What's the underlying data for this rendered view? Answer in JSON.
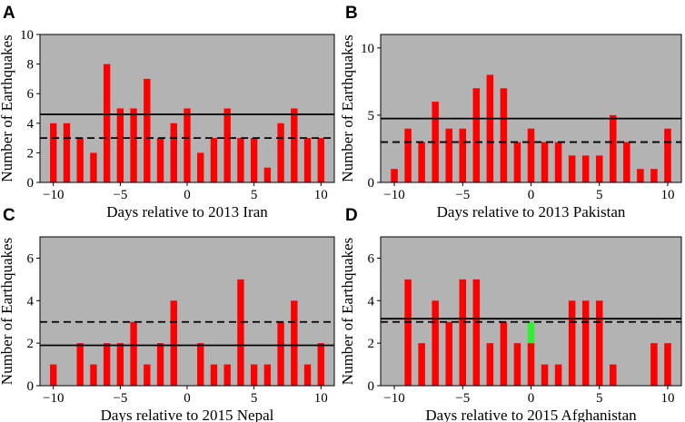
{
  "colors": {
    "plot_background": "#b3b3b3",
    "bar": "#ff0000",
    "highlight_bar": "#33ee33",
    "reference_line": "#000000"
  },
  "chart_data": [
    {
      "type": "bar",
      "panel": "A",
      "xlabel": "Days relative to 2013 Iran",
      "ylabel": "Number of Earthquakes",
      "x": [
        -10,
        -9,
        -8,
        -7,
        -6,
        -5,
        -4,
        -3,
        -2,
        -1,
        0,
        1,
        2,
        3,
        4,
        5,
        6,
        7,
        8,
        9,
        10
      ],
      "values": [
        4,
        4,
        3,
        2,
        8,
        5,
        5,
        7,
        3,
        4,
        5,
        2,
        3,
        5,
        3,
        3,
        1,
        4,
        5,
        3,
        3
      ],
      "solid_line": 4.6,
      "dashed_line": 3.0,
      "xlim": [
        -11,
        11
      ],
      "ylim": [
        0,
        10
      ],
      "xticks": [
        -10,
        -5,
        0,
        5,
        10
      ],
      "yticks": [
        0,
        2,
        4,
        6,
        8,
        10
      ]
    },
    {
      "type": "bar",
      "panel": "B",
      "xlabel": "Days relative to 2013 Pakistan",
      "ylabel": "Number of Earthquakes",
      "x": [
        -10,
        -9,
        -8,
        -7,
        -6,
        -5,
        -4,
        -3,
        -2,
        -1,
        0,
        1,
        2,
        3,
        4,
        5,
        6,
        7,
        8,
        9,
        10
      ],
      "values": [
        1,
        4,
        3,
        6,
        4,
        4,
        7,
        8,
        7,
        3,
        4,
        3,
        3,
        2,
        2,
        2,
        5,
        3,
        1,
        1,
        4
      ],
      "solid_line": 4.75,
      "dashed_line": 3.0,
      "xlim": [
        -11,
        11
      ],
      "ylim": [
        0,
        11
      ],
      "xticks": [
        -10,
        -5,
        0,
        5,
        10
      ],
      "yticks": [
        0,
        5,
        10
      ]
    },
    {
      "type": "bar",
      "panel": "C",
      "xlabel": "Days relative to 2015 Nepal",
      "ylabel": "Number of Earthquakes",
      "x": [
        -10,
        -9,
        -8,
        -7,
        -6,
        -5,
        -4,
        -3,
        -2,
        -1,
        0,
        1,
        2,
        3,
        4,
        5,
        6,
        7,
        8,
        9,
        10
      ],
      "values": [
        1,
        0,
        2,
        1,
        2,
        2,
        3,
        1,
        2,
        4,
        0,
        2,
        1,
        1,
        5,
        1,
        1,
        3,
        4,
        1,
        2
      ],
      "solid_line": 1.9,
      "dashed_line": 3.0,
      "xlim": [
        -11,
        11
      ],
      "ylim": [
        0,
        7
      ],
      "xticks": [
        -10,
        -5,
        0,
        5,
        10
      ],
      "yticks": [
        0,
        2,
        4,
        6
      ]
    },
    {
      "type": "bar",
      "panel": "D",
      "xlabel": "Days relative to 2015 Afghanistan",
      "ylabel": "Number of Earthquakes",
      "x": [
        -10,
        -9,
        -8,
        -7,
        -6,
        -5,
        -4,
        -3,
        -2,
        -1,
        0,
        1,
        2,
        3,
        4,
        5,
        6,
        7,
        8,
        9,
        10
      ],
      "values": [
        0,
        5,
        2,
        4,
        3,
        5,
        5,
        2,
        3,
        2,
        2,
        1,
        1,
        4,
        4,
        4,
        1,
        0,
        0,
        2,
        2
      ],
      "highlight": {
        "x": 0,
        "from": 2,
        "to": 3
      },
      "solid_line": 3.15,
      "dashed_line": 3.0,
      "xlim": [
        -11,
        11
      ],
      "ylim": [
        0,
        7
      ],
      "xticks": [
        -10,
        -5,
        0,
        5,
        10
      ],
      "yticks": [
        0,
        2,
        4,
        6
      ]
    }
  ]
}
